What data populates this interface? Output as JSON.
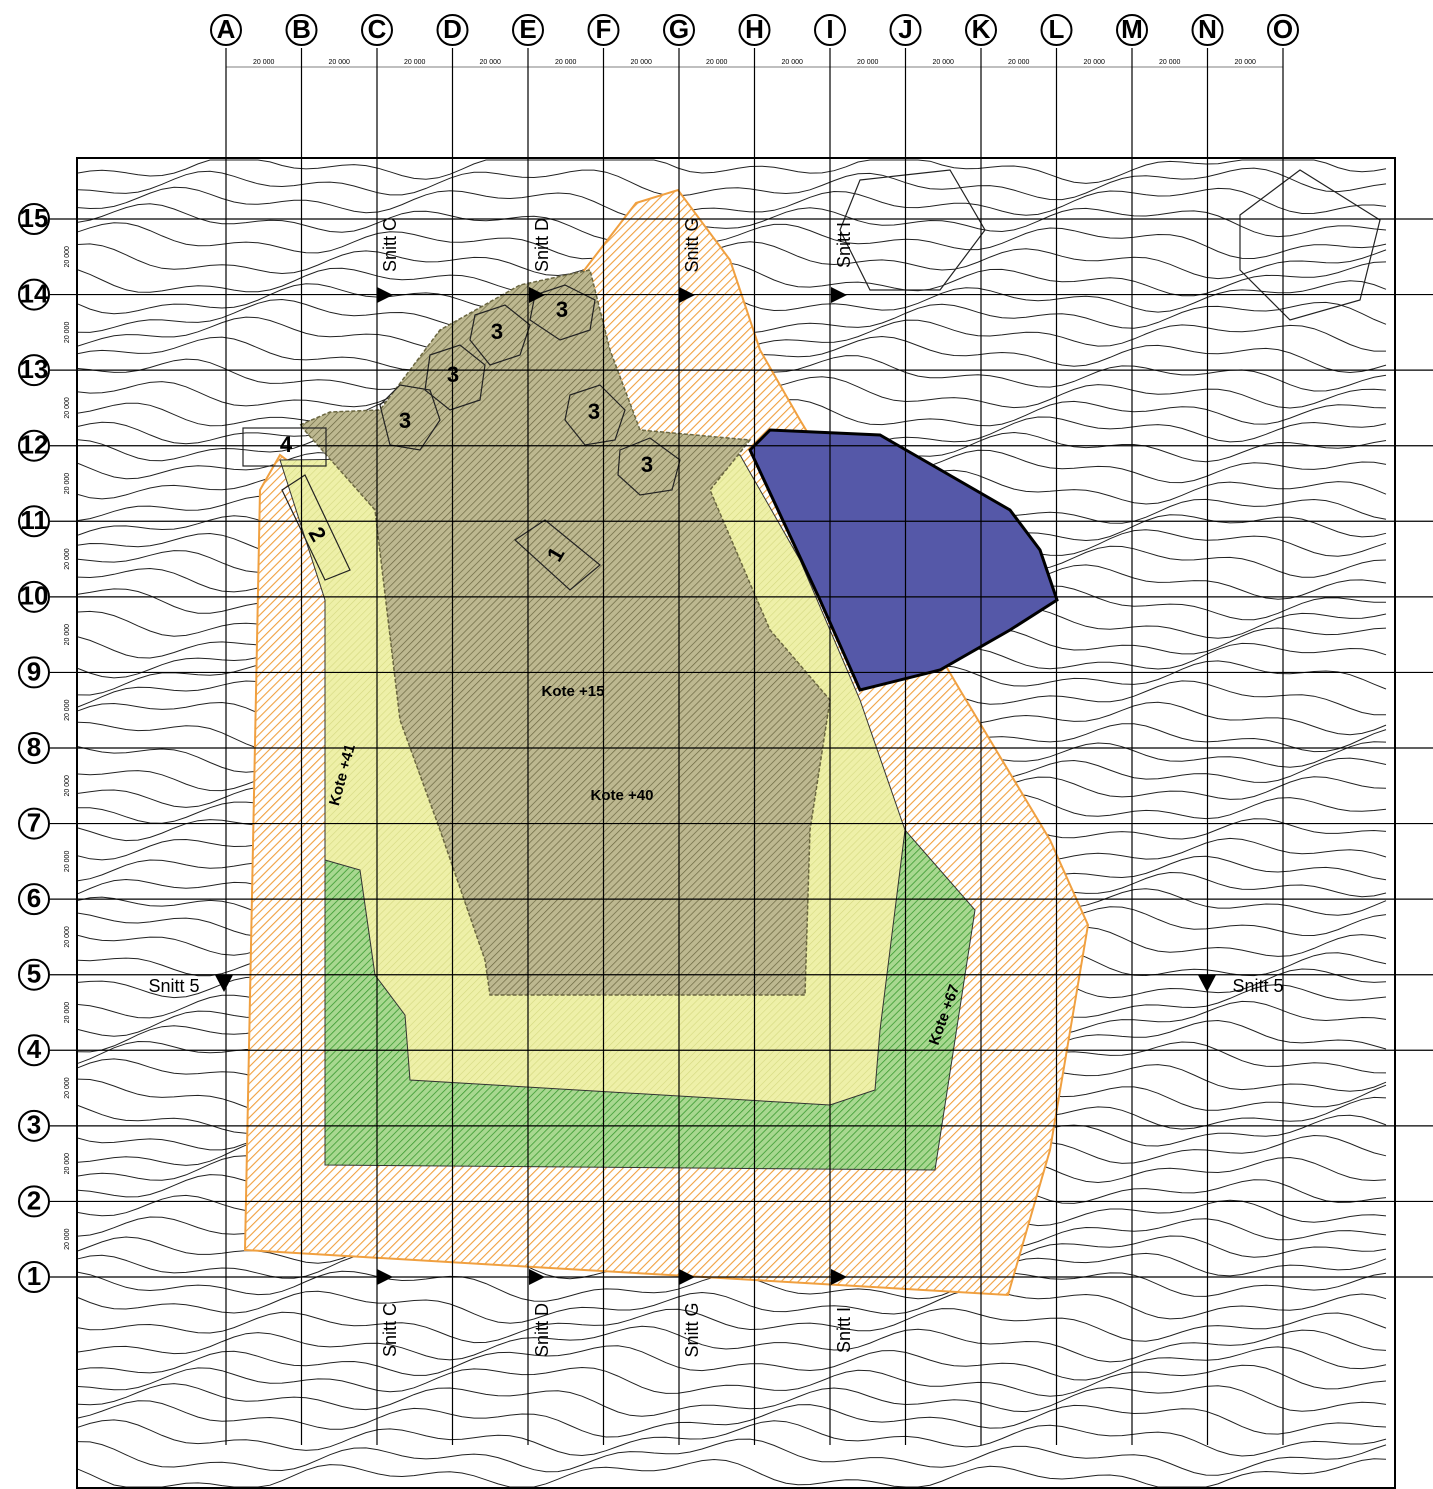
{
  "columns": [
    "A",
    "B",
    "C",
    "D",
    "E",
    "F",
    "G",
    "H",
    "I",
    "J",
    "K",
    "L",
    "M",
    "N",
    "O"
  ],
  "rows": [
    "1",
    "2",
    "3",
    "4",
    "5",
    "6",
    "7",
    "8",
    "9",
    "10",
    "11",
    "12",
    "13",
    "14",
    "15"
  ],
  "column_spacing_labels": [
    "20 000",
    "20 000",
    "20 000",
    "20 000",
    "20 000",
    "20 000",
    "20 000",
    "20 000",
    "20 000",
    "20 000",
    "20 000",
    "20 000",
    "20 000",
    "20 000"
  ],
  "row_spacing_labels": [
    "20 000",
    "20 000",
    "20 000",
    "20 000",
    "20 000",
    "20 000",
    "20 000",
    "20 000",
    "20 000",
    "20 000",
    "20 000",
    "20 000",
    "20 000",
    "20 000"
  ],
  "sections": {
    "top": [
      "Snitt C",
      "Snitt D",
      "Snitt G",
      "Snitt I"
    ],
    "bottom": [
      "Snitt C",
      "Snitt D",
      "Snitt G",
      "Snitt I"
    ],
    "left": "Snitt 5",
    "right": "Snitt 5"
  },
  "zones": [
    "1",
    "2",
    "3",
    "3",
    "3",
    "3",
    "3",
    "3",
    "4"
  ],
  "elevations": [
    "Kote +15",
    "Kote +40",
    "Kote +41",
    "Kote +67"
  ]
}
